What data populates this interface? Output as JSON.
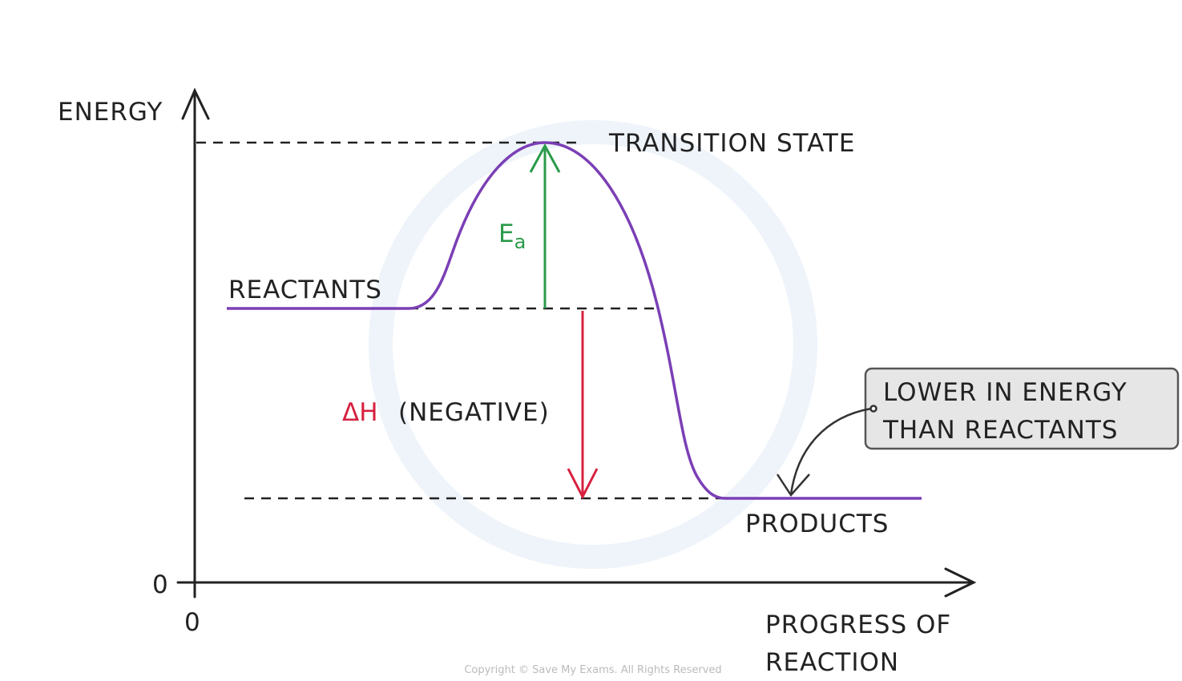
{
  "axes": {
    "y_label": "ENERGY",
    "x_label_lines": [
      "PROGRESS OF",
      "REACTION"
    ],
    "y_origin": "0",
    "x_origin": "0"
  },
  "labels": {
    "transition_state": "TRANSITION STATE",
    "reactants": "REACTANTS",
    "products": "PRODUCTS",
    "activation_energy": {
      "symbol": "E",
      "subscript": "a"
    },
    "enthalpy_change": {
      "symbol": "ΔH",
      "note": "(NEGATIVE)"
    }
  },
  "callout": {
    "lines": [
      "LOWER IN ENERGY",
      "THAN REACTANTS"
    ]
  },
  "copyright": "Copyright © Save My Exams. All Rights Reserved"
}
